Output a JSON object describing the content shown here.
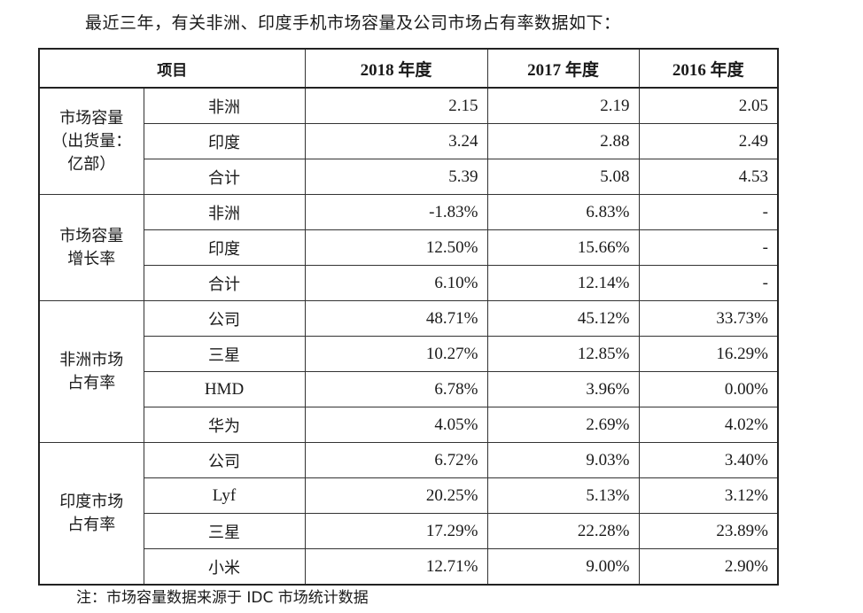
{
  "intro": "最近三年，有关非洲、印度手机市场容量及公司市场占有率数据如下：",
  "table": {
    "header": {
      "item": "项目",
      "years": [
        "2018 年度",
        "2017 年度",
        "2016 年度"
      ]
    },
    "groups": [
      {
        "label": "市场容量（出货量：亿部）",
        "label_lines": [
          "市场容量",
          "（出货量：",
          "亿部）"
        ],
        "rows": [
          {
            "item": "非洲",
            "values": [
              "2.15",
              "2.19",
              "2.05"
            ]
          },
          {
            "item": "印度",
            "values": [
              "3.24",
              "2.88",
              "2.49"
            ]
          },
          {
            "item": "合计",
            "values": [
              "5.39",
              "5.08",
              "4.53"
            ]
          }
        ]
      },
      {
        "label": "市场容量增长率",
        "label_lines": [
          "市场容量",
          "增长率"
        ],
        "rows": [
          {
            "item": "非洲",
            "values": [
              "-1.83%",
              "6.83%",
              "-"
            ]
          },
          {
            "item": "印度",
            "values": [
              "12.50%",
              "15.66%",
              "-"
            ]
          },
          {
            "item": "合计",
            "values": [
              "6.10%",
              "12.14%",
              "-"
            ]
          }
        ]
      },
      {
        "label": "非洲市场占有率",
        "label_lines": [
          "非洲市场",
          "占有率"
        ],
        "rows": [
          {
            "item": "公司",
            "values": [
              "48.71%",
              "45.12%",
              "33.73%"
            ]
          },
          {
            "item": "三星",
            "values": [
              "10.27%",
              "12.85%",
              "16.29%"
            ]
          },
          {
            "item": "HMD",
            "values": [
              "6.78%",
              "3.96%",
              "0.00%"
            ]
          },
          {
            "item": "华为",
            "values": [
              "4.05%",
              "2.69%",
              "4.02%"
            ]
          }
        ]
      },
      {
        "label": "印度市场占有率",
        "label_lines": [
          "印度市场",
          "占有率"
        ],
        "rows": [
          {
            "item": "公司",
            "values": [
              "6.72%",
              "9.03%",
              "3.40%"
            ]
          },
          {
            "item": "Lyf",
            "values": [
              "20.25%",
              "5.13%",
              "3.12%"
            ]
          },
          {
            "item": "三星",
            "values": [
              "17.29%",
              "22.28%",
              "23.89%"
            ]
          },
          {
            "item": "小米",
            "values": [
              "12.71%",
              "9.00%",
              "2.90%"
            ]
          }
        ]
      }
    ]
  },
  "note": "注：市场容量数据来源于 IDC 市场统计数据"
}
